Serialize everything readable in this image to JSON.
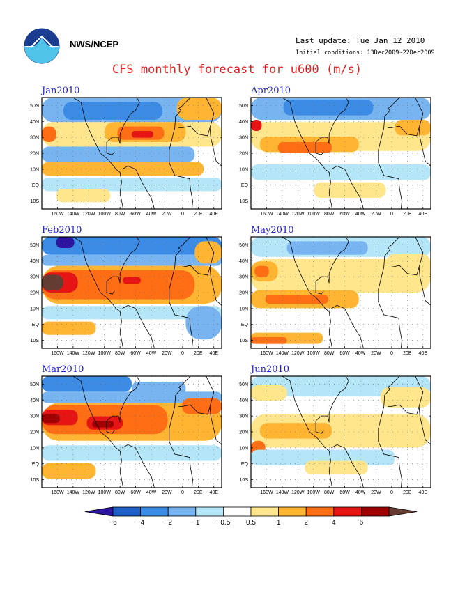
{
  "header": {
    "agency": "NWS/NCEP",
    "last_update": "Last update: Tue Jan 12 2010",
    "initial_conditions": "Initial conditions: 13Dec2009~22Dec2009",
    "title": "CFS monthly forecast for u600 (m/s)"
  },
  "colors": {
    "c_lt_m6": "#2c14a0",
    "c_m6_m4": "#1e5ec8",
    "c_m4_m2": "#3c8ce6",
    "c_m2_m1": "#78b4f0",
    "c_m1_m05": "#b4e6f8",
    "c_m05_05": "#ffffff",
    "c_05_1": "#ffe68c",
    "c_1_2": "#ffb432",
    "c_2_4": "#ff6e14",
    "c_4_6": "#e61414",
    "c_gt_6": "#a00000",
    "c_extreme": "#643c32"
  },
  "map": {
    "lon_labels": [
      "160W",
      "140W",
      "120W",
      "100W",
      "80W",
      "60W",
      "40W",
      "20W",
      "0",
      "20E",
      "40E"
    ],
    "lat_labels": [
      "50N",
      "40N",
      "30N",
      "20N",
      "10N",
      "EQ",
      "10S"
    ]
  },
  "panels": [
    {
      "id": "jan",
      "title": "Jan2010"
    },
    {
      "id": "apr",
      "title": "Apr2010"
    },
    {
      "id": "feb",
      "title": "Feb2010"
    },
    {
      "id": "may",
      "title": "May2010"
    },
    {
      "id": "mar",
      "title": "Mar2010"
    },
    {
      "id": "jun",
      "title": "Jun2010"
    }
  ],
  "colorbar": {
    "labels": [
      "-6",
      "-4",
      "-2",
      "-1",
      "-0.5",
      "0.5",
      "1",
      "2",
      "4",
      "6"
    ]
  }
}
